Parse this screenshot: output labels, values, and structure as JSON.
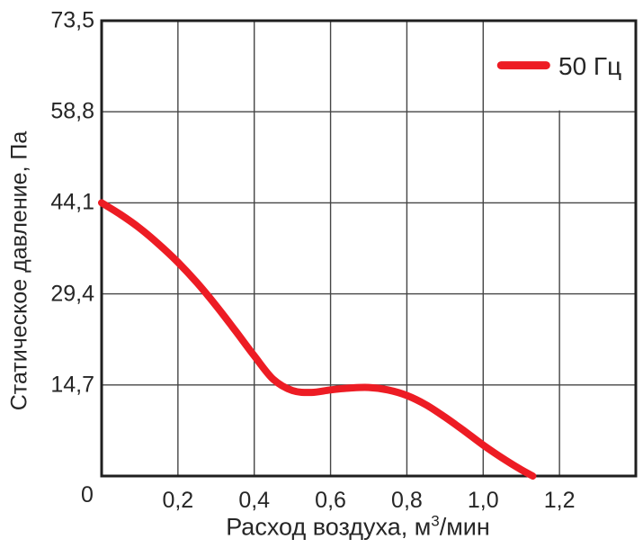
{
  "chart_data": {
    "type": "line",
    "title": "",
    "xlabel": "Расход воздуха, м³/мин",
    "xlabel_parts": {
      "prefix": "Расход воздуха, м",
      "sup": "3",
      "suffix": "/мин"
    },
    "ylabel": "Статическое давление, Па",
    "xlim": [
      0,
      1.4
    ],
    "ylim": [
      0,
      73.5
    ],
    "grid": {
      "x_step": 0.2,
      "y_step": 14.7,
      "visible": true
    },
    "x_ticks": [
      {
        "value": 0,
        "label": "0"
      },
      {
        "value": 0.2,
        "label": "0,2"
      },
      {
        "value": 0.4,
        "label": "0,4"
      },
      {
        "value": 0.6,
        "label": "0,6"
      },
      {
        "value": 0.8,
        "label": "0,8"
      },
      {
        "value": 1.0,
        "label": "1,0"
      },
      {
        "value": 1.2,
        "label": "1,2"
      }
    ],
    "y_ticks": [
      {
        "value": 73.5,
        "label": "73,5"
      },
      {
        "value": 58.8,
        "label": "58,8"
      },
      {
        "value": 44.1,
        "label": "44,1"
      },
      {
        "value": 29.4,
        "label": "29,4"
      },
      {
        "value": 14.7,
        "label": "14,7"
      }
    ],
    "legend": {
      "label": "50 Гц",
      "position": "top-right"
    },
    "series": [
      {
        "name": "50 Гц",
        "color": "#ed1c24",
        "points": [
          [
            0.0,
            44.1
          ],
          [
            0.05,
            42.2
          ],
          [
            0.1,
            40.0
          ],
          [
            0.15,
            37.4
          ],
          [
            0.2,
            34.5
          ],
          [
            0.25,
            31.2
          ],
          [
            0.3,
            27.5
          ],
          [
            0.35,
            23.5
          ],
          [
            0.4,
            19.4
          ],
          [
            0.45,
            15.6
          ],
          [
            0.5,
            13.8
          ],
          [
            0.55,
            13.5
          ],
          [
            0.6,
            13.9
          ],
          [
            0.65,
            14.2
          ],
          [
            0.7,
            14.3
          ],
          [
            0.75,
            13.9
          ],
          [
            0.8,
            13.0
          ],
          [
            0.85,
            11.5
          ],
          [
            0.9,
            9.5
          ],
          [
            0.95,
            7.3
          ],
          [
            1.0,
            5.0
          ],
          [
            1.05,
            2.9
          ],
          [
            1.1,
            1.0
          ],
          [
            1.13,
            0.0
          ]
        ]
      }
    ]
  },
  "colors": {
    "curve": "#ed1c24",
    "grid": "#454545",
    "border": "#1f1f1f",
    "text": "#262626",
    "background": "#ffffff"
  }
}
